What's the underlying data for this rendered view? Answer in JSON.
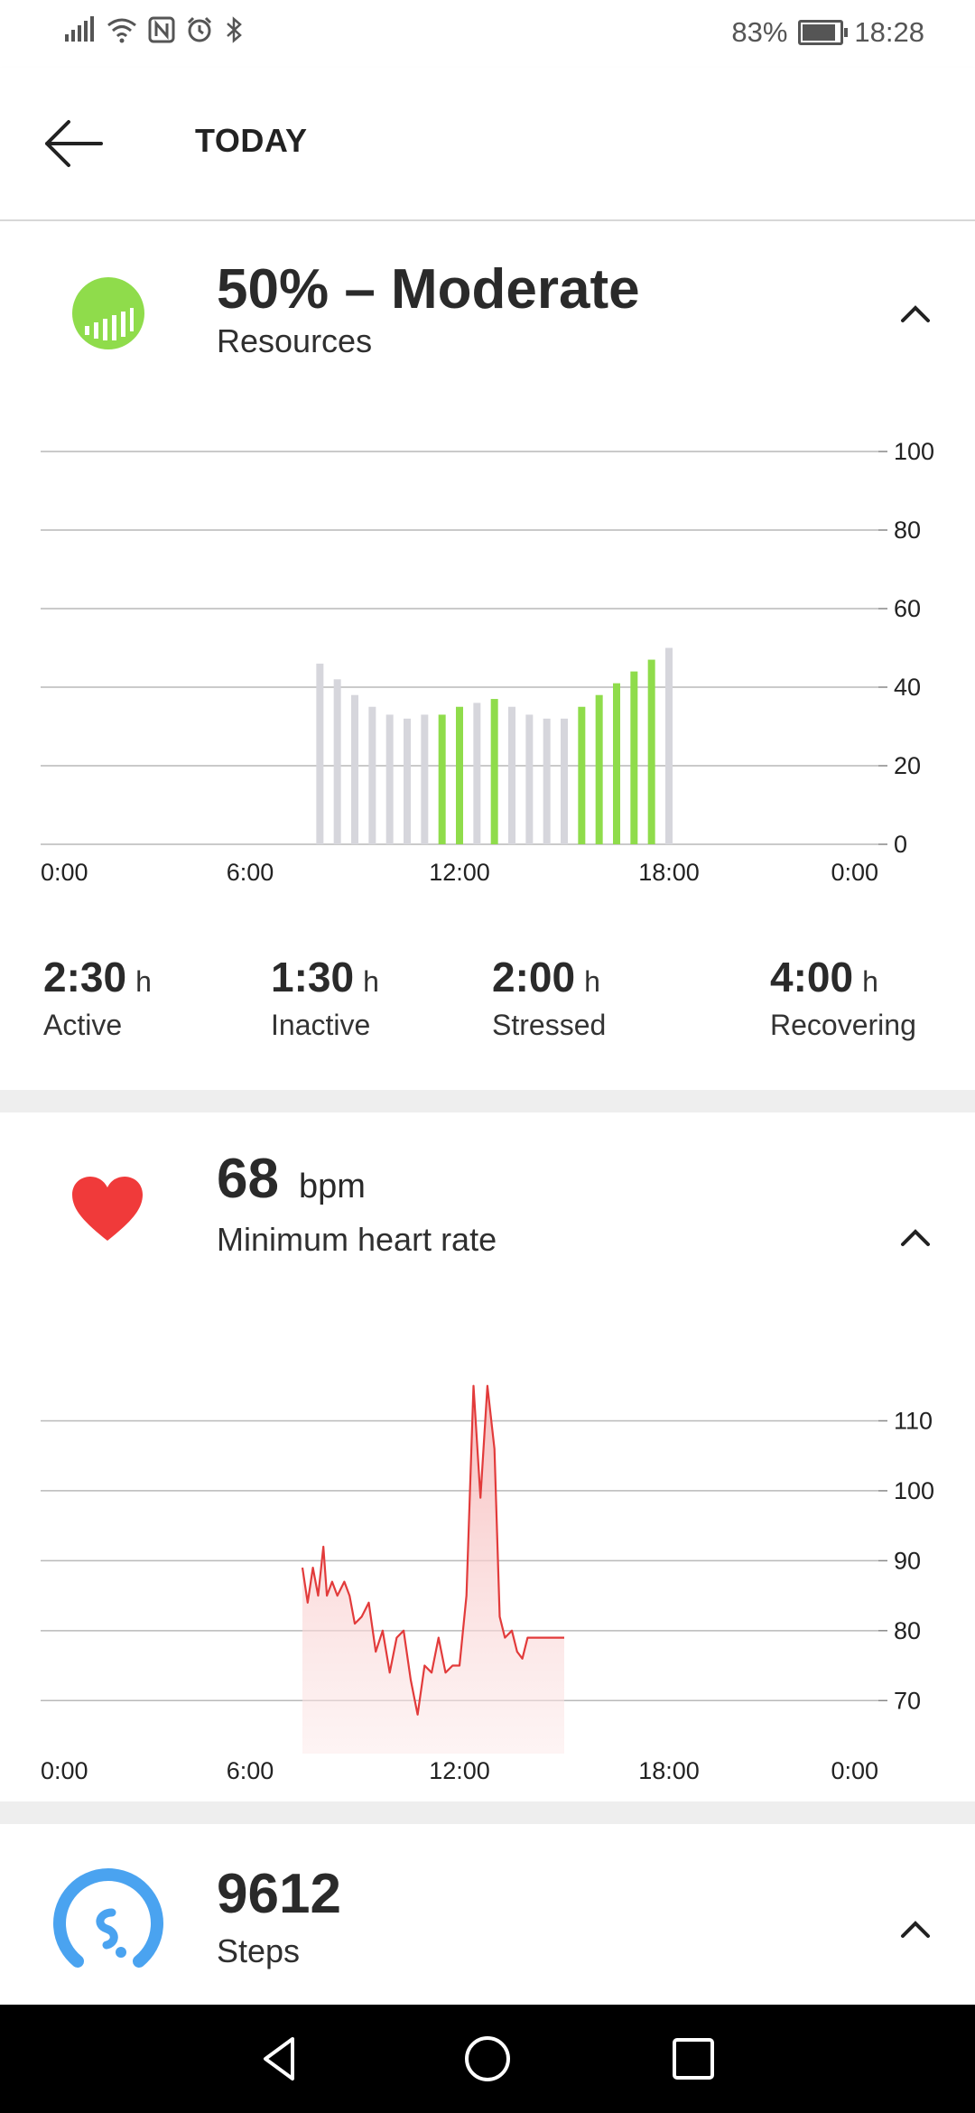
{
  "status_bar": {
    "battery": "83%",
    "time": "18:28",
    "icons": [
      "signal-icon",
      "wifi-icon",
      "nfc-icon",
      "alarm-icon",
      "bluetooth-icon",
      "battery-icon"
    ]
  },
  "app_bar": {
    "title": "TODAY",
    "back_icon": "back-arrow-icon"
  },
  "resources_card": {
    "value": "50% – Moderate",
    "label": "Resources",
    "icon": "resources-gauge-icon",
    "icon_color": "#8fdc4b",
    "stats": [
      {
        "value": "2:30",
        "unit": "h",
        "label": "Active"
      },
      {
        "value": "1:30",
        "unit": "h",
        "label": "Inactive"
      },
      {
        "value": "2:00",
        "unit": "h",
        "label": "Stressed"
      },
      {
        "value": "4:00",
        "unit": "h",
        "label": "Recovering"
      }
    ]
  },
  "heart_card": {
    "value": "68",
    "unit": "bpm",
    "label": "Minimum heart rate",
    "icon": "heart-icon",
    "icon_color": "#f03a3a"
  },
  "steps_card": {
    "value": "9612",
    "label": "Steps",
    "icon": "steps-icon",
    "icon_color": "#4aa3f0"
  },
  "nav_bar": {
    "icons": [
      "nav-back-icon",
      "nav-home-icon",
      "nav-recents-icon"
    ]
  },
  "chart_data": [
    {
      "type": "bar",
      "x_unit": "hour of day",
      "x_tick_labels": [
        "0:00",
        "6:00",
        "12:00",
        "18:00",
        "0:00"
      ],
      "x_ticks": [
        0,
        6,
        12,
        18,
        24
      ],
      "xlim": [
        0,
        24
      ],
      "y_tick_labels": [
        "0",
        "20",
        "40",
        "60",
        "80",
        "100"
      ],
      "ylim": [
        0,
        100
      ],
      "grid": true,
      "y_axis_side": "right",
      "colors": {
        "inactive": "#d6d6dc",
        "active": "#8fdc4b"
      },
      "bars": [
        {
          "x": 8.0,
          "y": 46,
          "color": "inactive"
        },
        {
          "x": 8.5,
          "y": 42,
          "color": "inactive"
        },
        {
          "x": 9.0,
          "y": 38,
          "color": "inactive"
        },
        {
          "x": 9.5,
          "y": 35,
          "color": "inactive"
        },
        {
          "x": 10.0,
          "y": 33,
          "color": "inactive"
        },
        {
          "x": 10.5,
          "y": 32,
          "color": "inactive"
        },
        {
          "x": 11.0,
          "y": 33,
          "color": "inactive"
        },
        {
          "x": 11.5,
          "y": 33,
          "color": "active"
        },
        {
          "x": 12.0,
          "y": 35,
          "color": "active"
        },
        {
          "x": 12.5,
          "y": 36,
          "color": "inactive"
        },
        {
          "x": 13.0,
          "y": 37,
          "color": "active"
        },
        {
          "x": 13.5,
          "y": 35,
          "color": "inactive"
        },
        {
          "x": 14.0,
          "y": 33,
          "color": "inactive"
        },
        {
          "x": 14.5,
          "y": 32,
          "color": "inactive"
        },
        {
          "x": 15.0,
          "y": 32,
          "color": "inactive"
        },
        {
          "x": 15.5,
          "y": 35,
          "color": "active"
        },
        {
          "x": 16.0,
          "y": 38,
          "color": "active"
        },
        {
          "x": 16.5,
          "y": 41,
          "color": "active"
        },
        {
          "x": 17.0,
          "y": 44,
          "color": "active"
        },
        {
          "x": 17.5,
          "y": 47,
          "color": "active"
        },
        {
          "x": 18.0,
          "y": 50,
          "color": "inactive"
        }
      ]
    },
    {
      "type": "area",
      "x_unit": "hour of day",
      "x_tick_labels": [
        "0:00",
        "6:00",
        "12:00",
        "18:00",
        "0:00"
      ],
      "x_ticks": [
        0,
        6,
        12,
        18,
        24
      ],
      "xlim": [
        0,
        24
      ],
      "y_tick_labels": [
        "70",
        "80",
        "90",
        "100",
        "110"
      ],
      "y_ticks": [
        70,
        80,
        90,
        100,
        110
      ],
      "ylim": [
        65,
        116
      ],
      "grid": true,
      "y_axis_side": "right",
      "line_color": "#e23b3b",
      "series": [
        {
          "x": [
            7.5,
            7.65,
            7.8,
            7.95,
            8.1,
            8.2,
            8.35,
            8.5,
            8.7,
            8.85,
            9.0,
            9.2,
            9.4,
            9.6,
            9.8,
            10.0,
            10.2,
            10.4,
            10.6,
            10.8,
            11.0,
            11.2,
            11.4,
            11.6,
            11.8,
            12.0,
            12.2,
            12.4,
            12.6,
            12.8,
            13.0,
            13.15,
            13.3,
            13.5,
            13.65,
            13.8,
            13.95,
            14.1,
            14.3,
            14.5,
            14.7,
            14.85,
            15.0
          ],
          "y": [
            89,
            84,
            89,
            85,
            92,
            85,
            87,
            85,
            87,
            85,
            81,
            82,
            84,
            77,
            80,
            74,
            79,
            80,
            73,
            68,
            75,
            74,
            79,
            74,
            75,
            75,
            85,
            115,
            99,
            115,
            106,
            82,
            79,
            80,
            77,
            76,
            79,
            79,
            79,
            79,
            79,
            79,
            79
          ]
        }
      ]
    }
  ]
}
